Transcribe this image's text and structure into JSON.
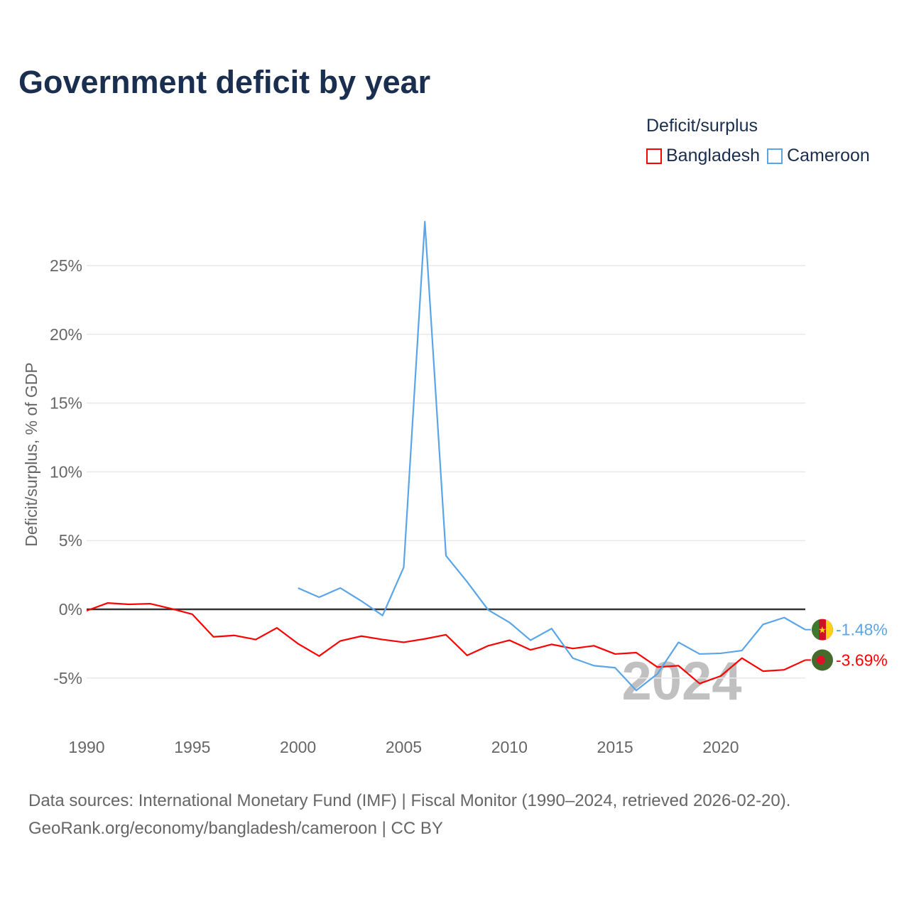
{
  "title": "Government deficit by year",
  "legend": {
    "title": "Deficit/surplus",
    "items": [
      {
        "name": "Bangladesh",
        "color": "#ff0000"
      },
      {
        "name": "Cameroon",
        "color": "#5aa5e8"
      }
    ]
  },
  "source_line1": "Data sources: International Monetary Fund (IMF) | Fiscal Monitor (1990–2024, retrieved 2026-02-20).",
  "source_line2": "GeoRank.org/economy/bangladesh/cameroon | CC BY",
  "year_watermark": "2024",
  "chart_data": {
    "type": "line",
    "title": "Government deficit by year",
    "xlabel": "",
    "ylabel": "Deficit/surplus, % of GDP",
    "xlim": [
      1990,
      2024
    ],
    "ylim": [
      -8.5,
      29
    ],
    "x_ticks": [
      1990,
      1995,
      2000,
      2005,
      2010,
      2015,
      2020
    ],
    "y_ticks": [
      -5,
      0,
      5,
      10,
      15,
      20,
      25
    ],
    "y_tick_labels": [
      "-5%",
      "0%",
      "5%",
      "10%",
      "15%",
      "20%",
      "25%"
    ],
    "grid": true,
    "legend_position": "top-right",
    "series": [
      {
        "name": "Bangladesh",
        "color": "#ff0000",
        "end_label": "-3.69%",
        "x": [
          1990,
          1991,
          1992,
          1993,
          1994,
          1995,
          1996,
          1997,
          1998,
          1999,
          2000,
          2001,
          2002,
          2003,
          2004,
          2005,
          2006,
          2007,
          2008,
          2009,
          2010,
          2011,
          2012,
          2013,
          2014,
          2015,
          2016,
          2017,
          2018,
          2019,
          2020,
          2021,
          2022,
          2023,
          2024
        ],
        "values": [
          -0.1,
          0.46,
          0.36,
          0.41,
          0.05,
          -0.36,
          -2.0,
          -1.9,
          -2.2,
          -1.35,
          -2.5,
          -3.4,
          -2.3,
          -1.95,
          -2.2,
          -2.4,
          -2.15,
          -1.85,
          -3.35,
          -2.65,
          -2.25,
          -2.95,
          -2.55,
          -2.85,
          -2.65,
          -3.25,
          -3.15,
          -4.2,
          -4.1,
          -5.4,
          -4.85,
          -3.55,
          -4.5,
          -4.4,
          -3.69
        ]
      },
      {
        "name": "Cameroon",
        "color": "#5aa5e8",
        "end_label": "-1.48%",
        "x": [
          2000,
          2001,
          2002,
          2003,
          2004,
          2005,
          2006,
          2007,
          2008,
          2009,
          2010,
          2011,
          2012,
          2013,
          2014,
          2015,
          2016,
          2017,
          2018,
          2019,
          2020,
          2021,
          2022,
          2023,
          2024
        ],
        "values": [
          1.55,
          0.88,
          1.55,
          0.6,
          -0.45,
          3.05,
          28.2,
          3.9,
          2.0,
          -0.05,
          -0.95,
          -2.25,
          -1.4,
          -3.55,
          -4.1,
          -4.25,
          -5.9,
          -4.7,
          -2.4,
          -3.25,
          -3.2,
          -3.0,
          -1.1,
          -0.6,
          -1.48
        ]
      }
    ]
  }
}
